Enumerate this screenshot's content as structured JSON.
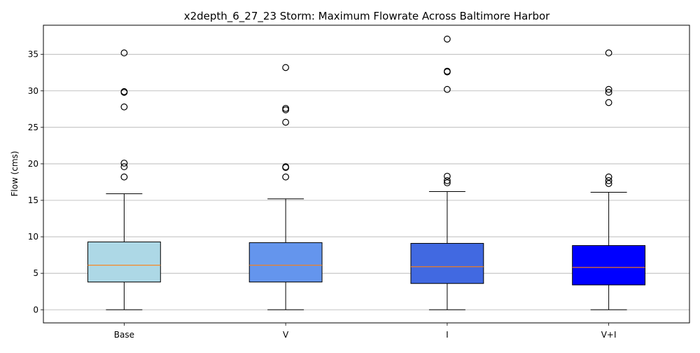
{
  "chart_data": {
    "type": "box",
    "title": "x2depth_6_27_23 Storm: Maximum Flowrate Across Baltimore Harbor",
    "xlabel": "",
    "ylabel": "Flow (cms)",
    "ylim": [
      -1.8,
      39.0
    ],
    "yticks": [
      0,
      5,
      10,
      15,
      20,
      25,
      30,
      35
    ],
    "grid": "y",
    "categories": [
      "Base",
      "V",
      "I",
      "V+I"
    ],
    "colors": [
      "#add8e6",
      "#6495ed",
      "#4169e1",
      "#0000ff"
    ],
    "median_color": "#ff7f0e",
    "boxes": [
      {
        "label": "Base",
        "whisker_low": 0.0,
        "q1": 3.8,
        "median": 6.1,
        "q3": 9.3,
        "whisker_high": 15.9,
        "outliers": [
          18.2,
          19.6,
          20.1,
          27.8,
          29.8,
          29.9,
          35.2
        ]
      },
      {
        "label": "V",
        "whisker_low": 0.0,
        "q1": 3.8,
        "median": 6.1,
        "q3": 9.2,
        "whisker_high": 15.2,
        "outliers": [
          18.2,
          19.5,
          19.6,
          25.7,
          27.4,
          27.6,
          33.2
        ]
      },
      {
        "label": "I",
        "whisker_low": 0.0,
        "q1": 3.6,
        "median": 5.9,
        "q3": 9.1,
        "whisker_high": 16.2,
        "outliers": [
          17.4,
          17.7,
          18.3,
          30.2,
          32.6,
          32.7,
          37.1
        ]
      },
      {
        "label": "V+I",
        "whisker_low": 0.0,
        "q1": 3.4,
        "median": 5.8,
        "q3": 8.8,
        "whisker_high": 16.1,
        "outliers": [
          17.3,
          17.7,
          18.2,
          28.4,
          29.8,
          30.2,
          35.2
        ]
      }
    ]
  }
}
